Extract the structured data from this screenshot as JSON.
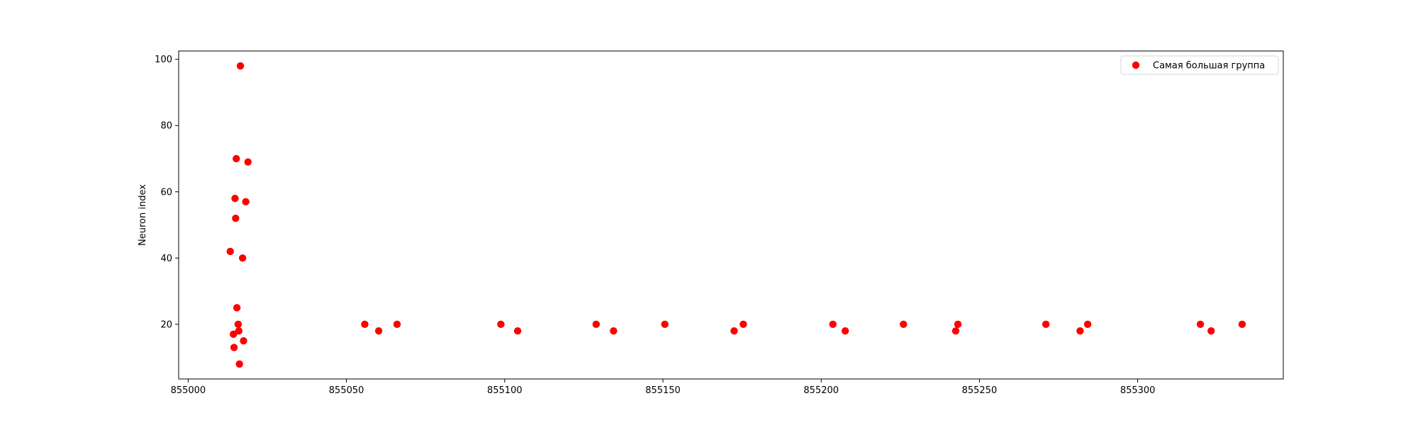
{
  "chart_data": {
    "type": "scatter",
    "title": "",
    "xlabel": "",
    "ylabel": "Neuron index",
    "xlim": [
      854997,
      855346
    ],
    "ylim": [
      3.5,
      102.5
    ],
    "xticks": [
      855000,
      855050,
      855100,
      855150,
      855200,
      855250,
      855300
    ],
    "yticks": [
      20,
      40,
      60,
      80,
      100
    ],
    "grid": false,
    "legend_position": "top-right",
    "series": [
      {
        "name": "Самая большая группа",
        "color": "#ff0000",
        "marker": "circle",
        "points": [
          {
            "x": 855013.3,
            "y": 42
          },
          {
            "x": 855014.3,
            "y": 17
          },
          {
            "x": 855014.5,
            "y": 13
          },
          {
            "x": 855014.8,
            "y": 58
          },
          {
            "x": 855015.0,
            "y": 52
          },
          {
            "x": 855015.2,
            "y": 70
          },
          {
            "x": 855015.4,
            "y": 25
          },
          {
            "x": 855015.8,
            "y": 20
          },
          {
            "x": 855016.0,
            "y": 18
          },
          {
            "x": 855016.2,
            "y": 8
          },
          {
            "x": 855016.5,
            "y": 98
          },
          {
            "x": 855017.2,
            "y": 40
          },
          {
            "x": 855017.5,
            "y": 15
          },
          {
            "x": 855018.2,
            "y": 57
          },
          {
            "x": 855018.9,
            "y": 69
          },
          {
            "x": 855055.8,
            "y": 20
          },
          {
            "x": 855060.2,
            "y": 18
          },
          {
            "x": 855066.0,
            "y": 20
          },
          {
            "x": 855098.8,
            "y": 20
          },
          {
            "x": 855104.1,
            "y": 18
          },
          {
            "x": 855128.9,
            "y": 20
          },
          {
            "x": 855134.4,
            "y": 18
          },
          {
            "x": 855150.6,
            "y": 20
          },
          {
            "x": 855172.5,
            "y": 18
          },
          {
            "x": 855175.4,
            "y": 20
          },
          {
            "x": 855203.7,
            "y": 20
          },
          {
            "x": 855207.6,
            "y": 18
          },
          {
            "x": 855226.0,
            "y": 20
          },
          {
            "x": 855242.5,
            "y": 18
          },
          {
            "x": 855243.2,
            "y": 20
          },
          {
            "x": 855271.0,
            "y": 20
          },
          {
            "x": 855281.8,
            "y": 18
          },
          {
            "x": 855284.2,
            "y": 20
          },
          {
            "x": 855319.8,
            "y": 20
          },
          {
            "x": 855323.2,
            "y": 18
          },
          {
            "x": 855333.0,
            "y": 20
          }
        ]
      }
    ]
  }
}
